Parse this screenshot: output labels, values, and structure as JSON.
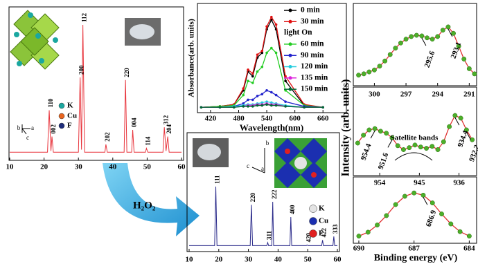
{
  "chart_data": [
    {
      "type": "line",
      "xlim": [
        10,
        60
      ],
      "ylim": [
        0,
        100
      ],
      "xticks": [
        10,
        20,
        30,
        40,
        50,
        60
      ],
      "series": [
        {
          "color": "#e8343c",
          "x": [
            10,
            21,
            21.5,
            22,
            22.3,
            22.7,
            30,
            30.5,
            30.9,
            31.3,
            31.8,
            37.7,
            38,
            38.4,
            43.3,
            43.7,
            44.1,
            45.5,
            45.8,
            46.2,
            49.5,
            49.8,
            50.2,
            54.6,
            55,
            55.5,
            56,
            56.4,
            60
          ],
          "values": [
            3,
            3,
            35,
            4,
            15,
            3,
            3,
            60,
            5,
            100,
            3,
            3,
            9,
            3,
            3,
            58,
            3,
            3,
            20,
            3,
            3,
            6,
            3,
            3,
            22,
            4,
            15,
            3,
            3
          ],
          "point_labels": [
            null,
            null,
            "110",
            null,
            "002",
            null,
            null,
            "200",
            null,
            "112",
            null,
            null,
            "202",
            null,
            null,
            "220",
            null,
            null,
            "004",
            null,
            null,
            "114",
            null,
            null,
            "312",
            null,
            "204",
            null,
            null
          ]
        }
      ]
    },
    {
      "type": "line",
      "xlabel": "Wavelength(nm)",
      "ylabel": "Absorbance(arb. units)",
      "xlim": [
        392,
        710
      ],
      "ylim": [
        0,
        100
      ],
      "xticks": [
        420,
        480,
        540,
        600,
        660
      ],
      "legend_note": "light On",
      "series": [
        {
          "name": "0 min",
          "color": "#000000",
          "x": [
            400,
            440,
            470,
            490,
            500,
            510,
            520,
            530,
            540,
            550,
            560,
            580,
            620,
            660
          ],
          "values": [
            2,
            3,
            5,
            20,
            40,
            35,
            55,
            60,
            85,
            95,
            85,
            30,
            4,
            2
          ]
        },
        {
          "name": "30 min",
          "color": "#e01010",
          "x": [
            400,
            440,
            470,
            490,
            500,
            510,
            520,
            530,
            540,
            550,
            560,
            580,
            620,
            660
          ],
          "values": [
            2,
            3,
            5,
            22,
            42,
            38,
            58,
            62,
            88,
            98,
            90,
            35,
            5,
            2
          ]
        },
        {
          "name": "60 min",
          "color": "#22cc22",
          "x": [
            400,
            440,
            470,
            490,
            500,
            510,
            520,
            530,
            540,
            550,
            560,
            580,
            620,
            660
          ],
          "values": [
            2,
            3,
            4,
            15,
            30,
            28,
            40,
            45,
            60,
            65,
            60,
            20,
            4,
            2
          ]
        },
        {
          "name": "90 min",
          "color": "#2222cc",
          "x": [
            400,
            440,
            470,
            490,
            500,
            510,
            520,
            530,
            540,
            550,
            560,
            580,
            620,
            660
          ],
          "values": [
            2,
            2,
            3,
            6,
            10,
            10,
            14,
            16,
            20,
            18,
            15,
            8,
            3,
            2
          ]
        },
        {
          "name": "120 min",
          "color": "#22ccdd",
          "x": [
            400,
            440,
            470,
            490,
            500,
            510,
            520,
            530,
            540,
            550,
            560,
            580,
            620,
            660
          ],
          "values": [
            2,
            2,
            3,
            4,
            5,
            5,
            6,
            7,
            8,
            7,
            6,
            4,
            2,
            2
          ]
        },
        {
          "name": "135 min",
          "color": "#dd22dd",
          "x": [
            400,
            440,
            470,
            490,
            500,
            510,
            520,
            530,
            540,
            550,
            560,
            580,
            620,
            660
          ],
          "values": [
            2,
            2,
            2,
            3,
            4,
            4,
            5,
            5,
            6,
            5,
            5,
            3,
            2,
            2
          ]
        },
        {
          "name": "150 min",
          "color": "#006633",
          "x": [
            400,
            440,
            470,
            490,
            500,
            510,
            520,
            530,
            540,
            550,
            560,
            580,
            620,
            660
          ],
          "values": [
            2,
            2,
            2,
            3,
            3,
            3,
            4,
            4,
            5,
            4,
            4,
            3,
            2,
            2
          ]
        }
      ]
    },
    {
      "type": "line",
      "xlim": [
        302,
        290.3
      ],
      "ylim": [
        0,
        100
      ],
      "xticks": [
        300,
        297,
        294,
        291
      ],
      "series": [
        {
          "color": "#e03030",
          "marker_color": "#4caf2a",
          "x": [
            301.5,
            301,
            300.5,
            300,
            299.5,
            299,
            298.5,
            298,
            297.5,
            297,
            296.5,
            296,
            295.5,
            295,
            294.5,
            294,
            293.5,
            293,
            292.5,
            292,
            291.5,
            291,
            290.5
          ],
          "values": [
            10,
            12,
            15,
            18,
            24,
            32,
            42,
            52,
            60,
            66,
            70,
            72,
            71,
            68,
            66,
            70,
            80,
            85,
            75,
            55,
            35,
            20,
            12
          ],
          "point_labels": [
            null,
            null,
            null,
            null,
            null,
            null,
            null,
            null,
            null,
            null,
            null,
            null,
            "295.6",
            null,
            null,
            null,
            null,
            "293.1",
            null,
            null,
            null,
            null,
            null
          ]
        }
      ]
    },
    {
      "type": "line",
      "ylabel": "Intensity (arb. units)",
      "annotation": "Satellite bands",
      "xlim": [
        960,
        932
      ],
      "ylim": [
        0,
        100
      ],
      "xticks": [
        954,
        945,
        936
      ],
      "series": [
        {
          "color": "#e03030",
          "marker_color": "#4caf2a",
          "x": [
            959,
            957.7,
            956.4,
            955.1,
            953.8,
            952.5,
            951.2,
            949.9,
            948.6,
            947.3,
            946,
            944.7,
            943.4,
            942.1,
            940.8,
            939.5,
            938.2,
            936.9,
            935.6,
            934.3,
            933
          ],
          "values": [
            40,
            52,
            60,
            62,
            58,
            55,
            48,
            36,
            30,
            33,
            37,
            34,
            32,
            35,
            30,
            42,
            65,
            82,
            78,
            60,
            45
          ],
          "point_labels": [
            null,
            null,
            null,
            "954.4",
            null,
            null,
            "951.6",
            null,
            null,
            null,
            null,
            null,
            null,
            null,
            null,
            null,
            null,
            "934.4",
            null,
            "932.2",
            null
          ]
        }
      ]
    },
    {
      "type": "line",
      "xlabel": "Binding energy (eV)",
      "xlim": [
        690.3,
        683.6
      ],
      "ylim": [
        0,
        100
      ],
      "xticks": [
        690,
        687,
        684
      ],
      "series": [
        {
          "color": "#e03030",
          "marker_color": "#4caf2a",
          "x": [
            690,
            689.5,
            689,
            688.5,
            688,
            687.5,
            687,
            686.5,
            686,
            685.5,
            685,
            684.5,
            684
          ],
          "values": [
            8,
            15,
            28,
            45,
            65,
            80,
            86,
            82,
            68,
            48,
            30,
            16,
            8
          ],
          "point_labels": [
            null,
            null,
            null,
            null,
            null,
            null,
            null,
            "686.9",
            null,
            null,
            null,
            null,
            null
          ]
        }
      ]
    },
    {
      "type": "line",
      "xlim": [
        10,
        60
      ],
      "ylim": [
        0,
        100
      ],
      "xticks": [
        10,
        20,
        30,
        40,
        50,
        60
      ],
      "series": [
        {
          "color": "#2a2a8a",
          "x": [
            10,
            18.6,
            19,
            19.4,
            30.6,
            31,
            31.4,
            36.2,
            36.5,
            36.8,
            37.9,
            38.2,
            38.5,
            44,
            44.3,
            44.6,
            49.5,
            49.8,
            50.1,
            54.7,
            55,
            55.3,
            58.5,
            58.8,
            59.1,
            60
          ],
          "values": [
            3,
            3,
            100,
            3,
            3,
            70,
            3,
            3,
            8,
            3,
            3,
            75,
            3,
            3,
            50,
            3,
            3,
            4,
            3,
            3,
            12,
            3,
            3,
            18,
            3,
            3
          ],
          "point_labels": [
            null,
            null,
            "111",
            null,
            null,
            "220",
            null,
            null,
            "311",
            null,
            null,
            "222",
            null,
            null,
            "400",
            null,
            null,
            "420",
            null,
            null,
            "422",
            null,
            null,
            "333",
            null,
            null
          ]
        }
      ]
    }
  ],
  "insets": {
    "top": {
      "axes": [
        "b",
        "a",
        "c"
      ],
      "legend": [
        {
          "label": "K",
          "color": "#1aa7a0"
        },
        {
          "label": "Cu",
          "color": "#e8641e"
        },
        {
          "label": "F",
          "color": "#1d2c7a"
        }
      ]
    },
    "bottom": {
      "axes": [
        "b",
        "c",
        "a"
      ],
      "legend": [
        {
          "label": "K",
          "color": "#e4e4e4"
        },
        {
          "label": "Cu",
          "color": "#1b2fb0"
        },
        {
          "label": "F",
          "color": "#e02020"
        }
      ]
    }
  },
  "reaction": {
    "label": "H₂O₂"
  }
}
